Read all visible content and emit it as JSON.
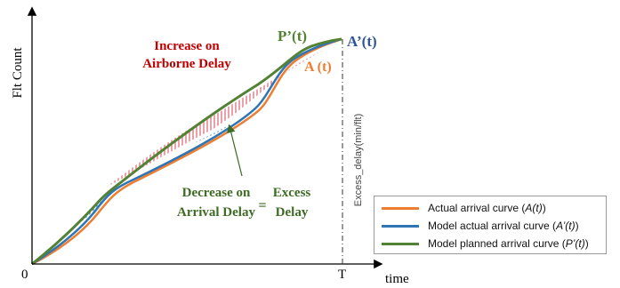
{
  "diagram": {
    "axes": {
      "y_label": "Flt Count",
      "x_label": "time",
      "origin_label": "0",
      "end_label": "T"
    },
    "curve_labels": {
      "planned": "P’(t)",
      "model_actual": "A’(t)",
      "actual": "A (t)"
    },
    "annotations": {
      "increase_line1": "Increase on",
      "increase_line2": "Airborne Delay",
      "decrease_line1": "Decrease on",
      "decrease_line2": "Arrival Delay",
      "equals": "=",
      "excess_line1": "Excess",
      "excess_line2": "Delay",
      "vertical_label": "Excess_delay(min/flt)"
    },
    "colors": {
      "actual": "#ED7D31",
      "model_actual": "#2E75B6",
      "planned": "#548235",
      "increase_text": "#C00000",
      "decrease_text": "#3D6B23",
      "hatch_red": "#E06070",
      "hatch_blue": "#2E75B6",
      "hatch_yellow": "#E8C020",
      "axis": "#000000"
    }
  },
  "legend": {
    "items": [
      {
        "prefix": "Actual arrival curve (",
        "var": "A(t)",
        "suffix": ")",
        "color": "#ED7D31"
      },
      {
        "prefix": "Model actual arrival curve (",
        "var": "A’(t)",
        "suffix": ")",
        "color": "#2E75B6"
      },
      {
        "prefix": "Model planned arrival curve (",
        "var": "P’(t)",
        "suffix": ")",
        "color": "#548235"
      }
    ]
  }
}
